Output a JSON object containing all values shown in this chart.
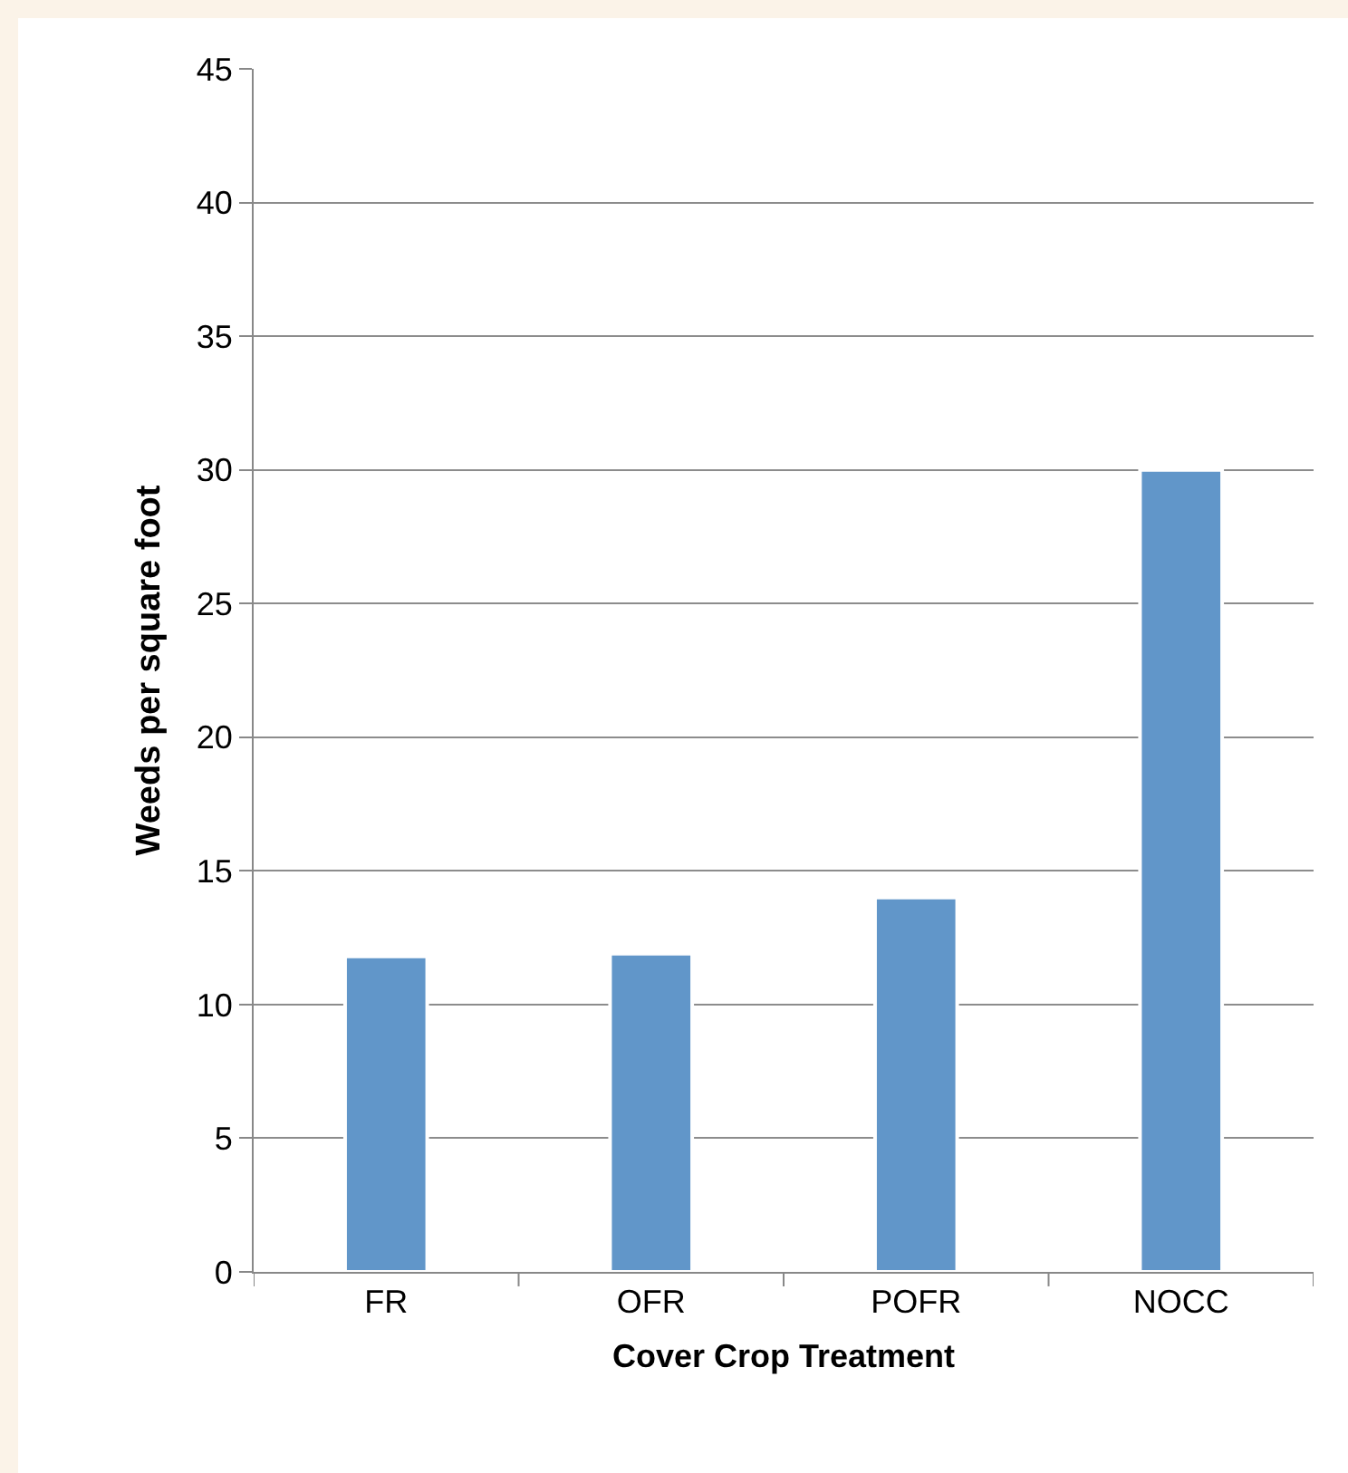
{
  "chart_data": {
    "type": "bar",
    "xlabel": "Cover Crop Treatment",
    "ylabel": "Weeds per square foot",
    "categories": [
      "FR",
      "OFR",
      "POFR",
      "NOCC"
    ],
    "values": [
      11.8,
      11.9,
      14.0,
      30.0
    ],
    "color": "#6196c9",
    "ylim": [
      0,
      45
    ],
    "yticks": [
      0,
      5,
      10,
      15,
      20,
      25,
      30,
      35,
      40,
      45
    ],
    "grid": "y"
  }
}
